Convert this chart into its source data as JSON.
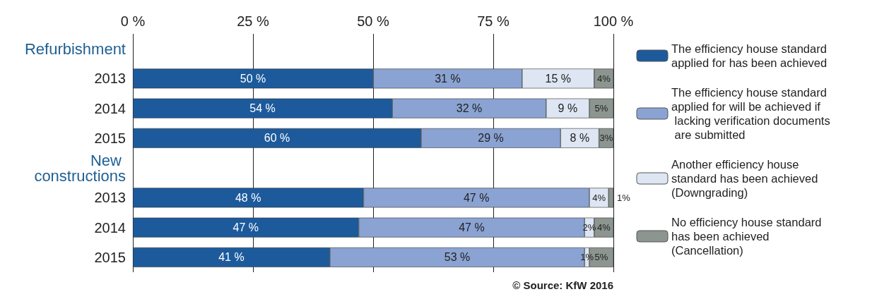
{
  "chart_data": {
    "type": "bar",
    "orientation": "horizontal",
    "stacked": true,
    "categories": [
      "Refurbishment",
      "2013",
      "2014",
      "2015",
      "New constructions",
      "2013",
      "2014",
      "2015"
    ],
    "series": [
      {
        "name": "The efficiency house standard applied for has been achieved",
        "color": "#1c5a9c",
        "values": [
          null,
          50,
          54,
          60,
          null,
          48,
          47,
          41
        ],
        "value_labels": [
          null,
          "50 %",
          "54 %",
          "60 %",
          null,
          "48 %",
          "47 %",
          "41 %"
        ]
      },
      {
        "name": "The efficiency house standard applied for will be achieved if lacking verification documents are submitted",
        "color": "#8aa3d3",
        "values": [
          null,
          31,
          32,
          29,
          null,
          47,
          47,
          53
        ],
        "value_labels": [
          null,
          "31 %",
          "32 %",
          "29 %",
          null,
          "47 %",
          "47 %",
          "53 %"
        ]
      },
      {
        "name": "Another efficiency house standard has been achieved (Downgrading)",
        "color": "#dde6f2",
        "values": [
          null,
          15,
          9,
          8,
          null,
          4,
          2,
          1
        ],
        "value_labels": [
          null,
          "15 %",
          "9 %",
          "8 %",
          null,
          "4%",
          "2%",
          "1%"
        ]
      },
      {
        "name": "No efficiency house standard has been achieved (Cancellation)",
        "color": "#8c9590",
        "values": [
          null,
          4,
          5,
          3,
          null,
          1,
          4,
          5
        ],
        "value_labels": [
          null,
          "4%",
          "5%",
          "3%",
          null,
          "1%",
          "4%",
          "5%"
        ]
      }
    ],
    "xlim": [
      0,
      100
    ],
    "xticks": [
      {
        "value": 0,
        "label": "0 %"
      },
      {
        "value": 25,
        "label": "25 %"
      },
      {
        "value": 50,
        "label": "50 %"
      },
      {
        "value": 75,
        "label": "75 %"
      },
      {
        "value": 100,
        "label": "100 %"
      }
    ],
    "grid": "x",
    "legend": "right",
    "annotations": [
      "© Source: KfW 2016"
    ]
  }
}
